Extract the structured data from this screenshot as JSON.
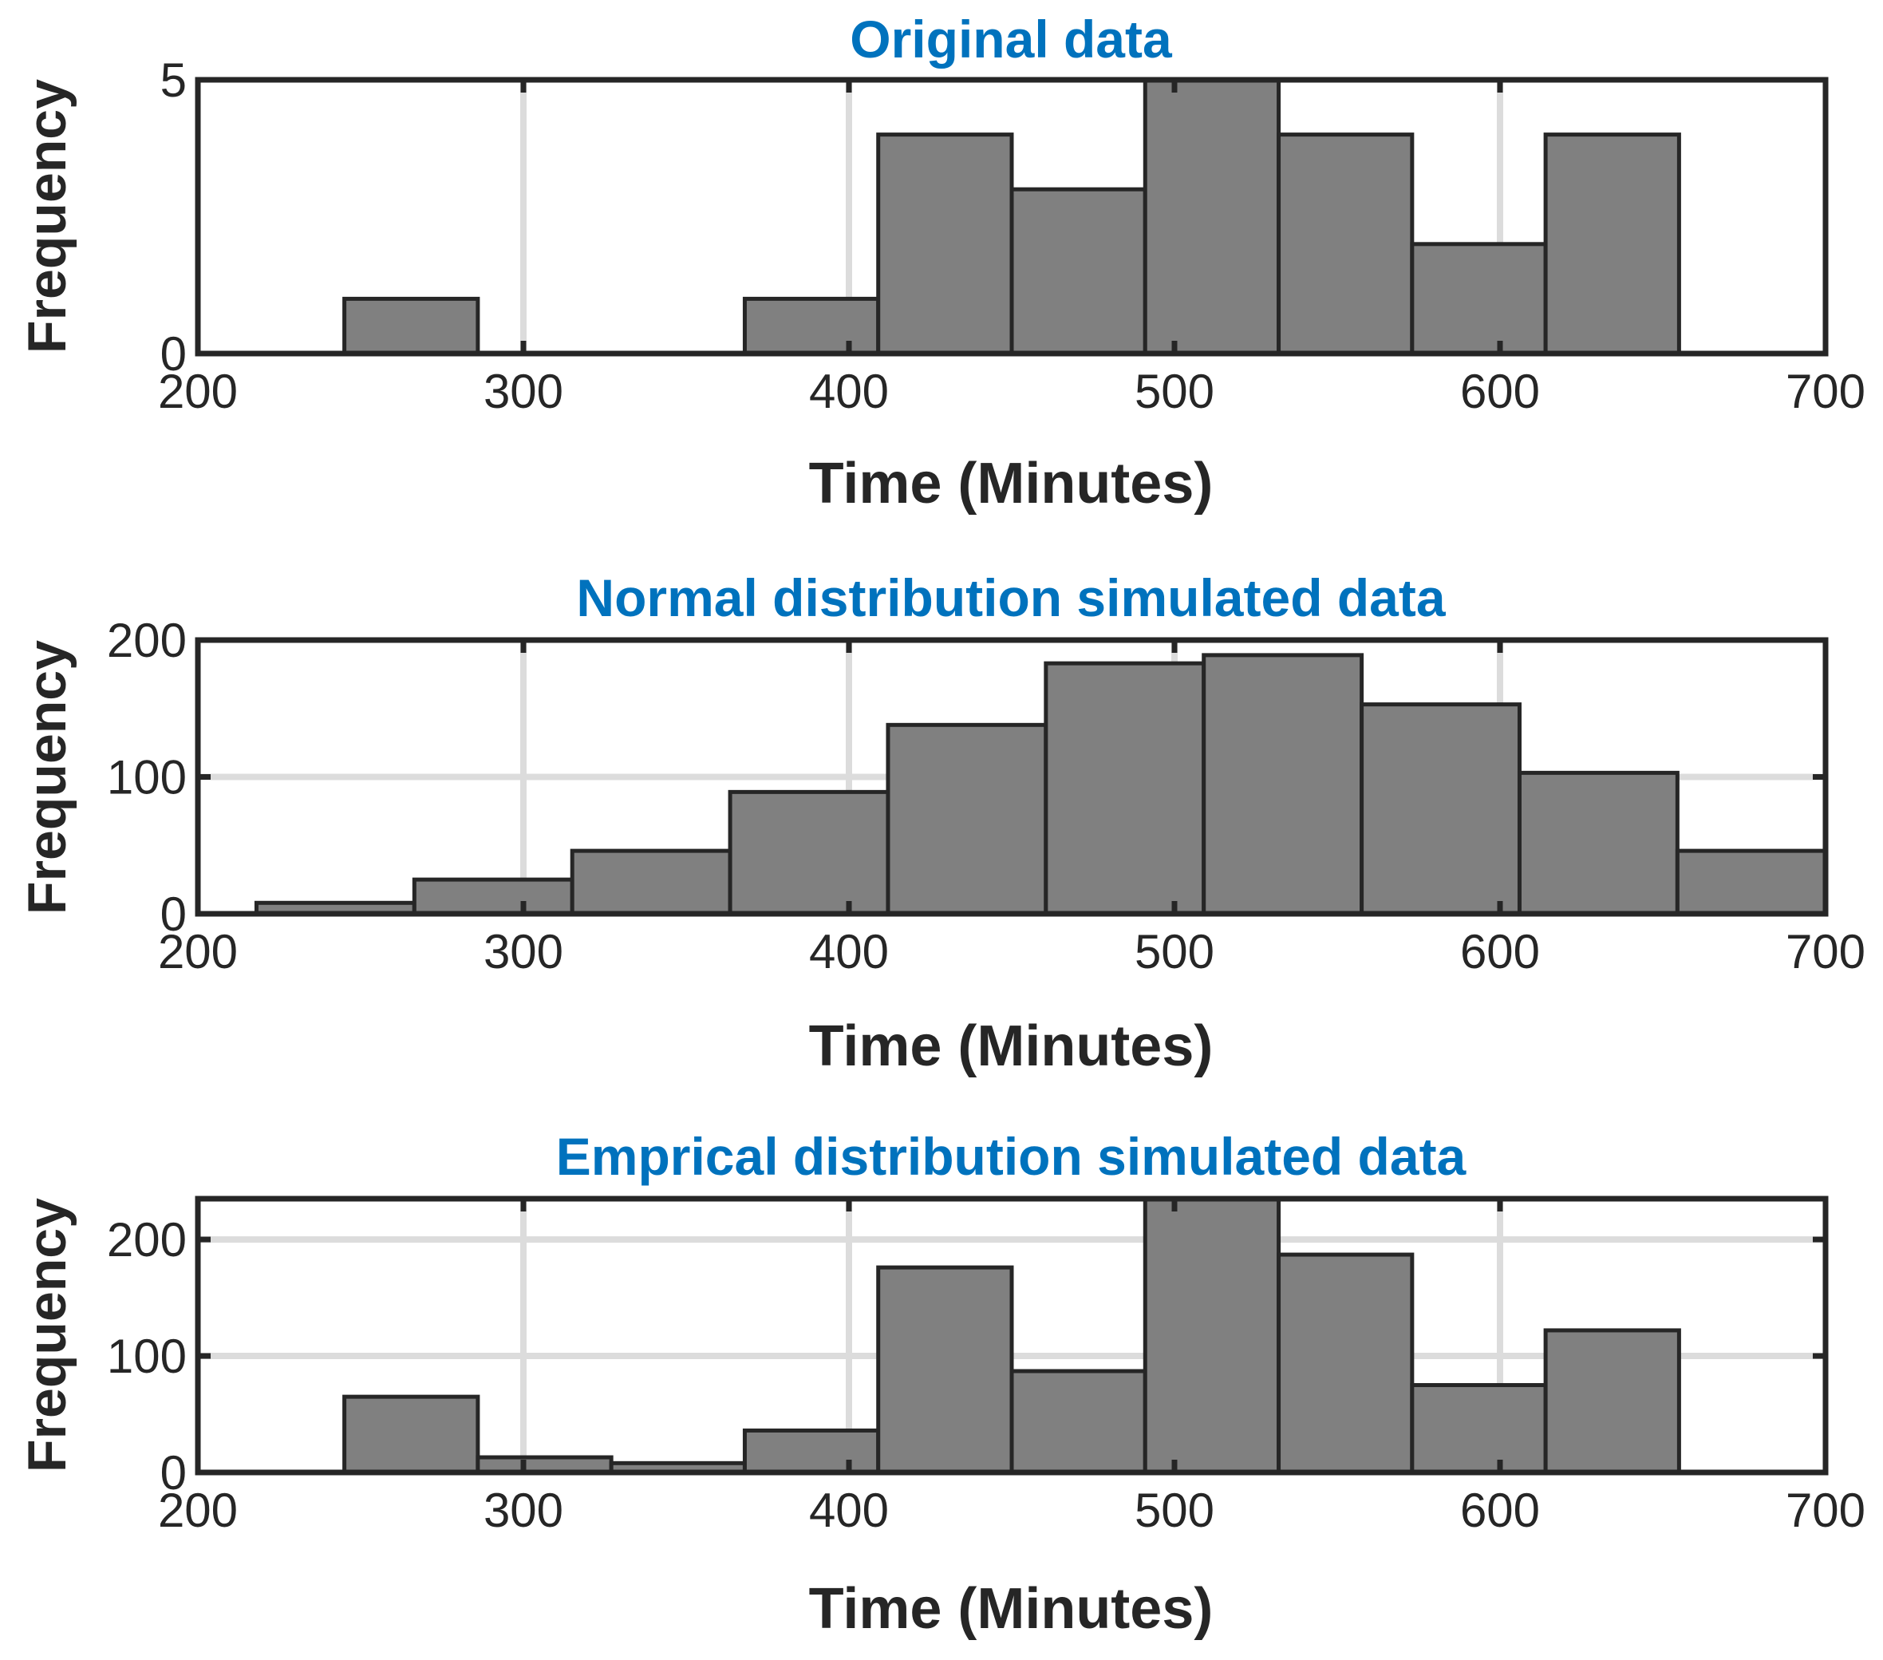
{
  "chart_data": [
    {
      "type": "bar",
      "title": "Original data",
      "xlabel": "Time (Minutes)",
      "ylabel": "Frequency",
      "xlim": [
        200,
        700
      ],
      "ylim": [
        0,
        5
      ],
      "xticks": [
        200,
        300,
        400,
        500,
        600,
        700
      ],
      "yticks": [
        0,
        5
      ],
      "grid": {
        "x": true,
        "y": false
      },
      "bins": [
        {
          "start": 245,
          "end": 286,
          "value": 1
        },
        {
          "start": 286,
          "end": 327,
          "value": 0
        },
        {
          "start": 327,
          "end": 368,
          "value": 0
        },
        {
          "start": 368,
          "end": 409,
          "value": 1
        },
        {
          "start": 409,
          "end": 450,
          "value": 4
        },
        {
          "start": 450,
          "end": 491,
          "value": 3
        },
        {
          "start": 491,
          "end": 532,
          "value": 5
        },
        {
          "start": 532,
          "end": 573,
          "value": 4
        },
        {
          "start": 573,
          "end": 614,
          "value": 2
        },
        {
          "start": 614,
          "end": 655,
          "value": 4
        }
      ]
    },
    {
      "type": "bar",
      "title": "Normal distribution simulated data",
      "xlabel": "Time (Minutes)",
      "ylabel": "Frequency",
      "xlim": [
        200,
        700
      ],
      "ylim": [
        0,
        200
      ],
      "xticks": [
        200,
        300,
        400,
        500,
        600,
        700
      ],
      "yticks": [
        0,
        100,
        200
      ],
      "grid": {
        "x": true,
        "y": true
      },
      "bins": [
        {
          "start": 218,
          "end": 266.5,
          "value": 8
        },
        {
          "start": 266.5,
          "end": 315,
          "value": 25
        },
        {
          "start": 315,
          "end": 363.5,
          "value": 46
        },
        {
          "start": 363.5,
          "end": 412,
          "value": 89
        },
        {
          "start": 412,
          "end": 460.5,
          "value": 138
        },
        {
          "start": 460.5,
          "end": 509,
          "value": 183
        },
        {
          "start": 509,
          "end": 557.5,
          "value": 189
        },
        {
          "start": 557.5,
          "end": 606,
          "value": 153
        },
        {
          "start": 606,
          "end": 654.5,
          "value": 103
        },
        {
          "start": 654.5,
          "end": 703,
          "value": 46
        }
      ]
    },
    {
      "type": "bar",
      "title": "Emprical distribution simulated data",
      "xlabel": "Time (Minutes)",
      "ylabel": "Frequency",
      "xlim": [
        200,
        700
      ],
      "ylim": [
        0,
        235
      ],
      "xticks": [
        200,
        300,
        400,
        500,
        600,
        700
      ],
      "yticks": [
        0,
        100,
        200
      ],
      "grid": {
        "x": true,
        "y": true
      },
      "bins": [
        {
          "start": 245,
          "end": 286,
          "value": 65
        },
        {
          "start": 286,
          "end": 327,
          "value": 13
        },
        {
          "start": 327,
          "end": 368,
          "value": 8
        },
        {
          "start": 368,
          "end": 409,
          "value": 36
        },
        {
          "start": 409,
          "end": 450,
          "value": 176
        },
        {
          "start": 450,
          "end": 491,
          "value": 87
        },
        {
          "start": 491,
          "end": 532,
          "value": 240
        },
        {
          "start": 532,
          "end": 573,
          "value": 187
        },
        {
          "start": 573,
          "end": 614,
          "value": 75
        },
        {
          "start": 614,
          "end": 655,
          "value": 122
        }
      ]
    }
  ]
}
